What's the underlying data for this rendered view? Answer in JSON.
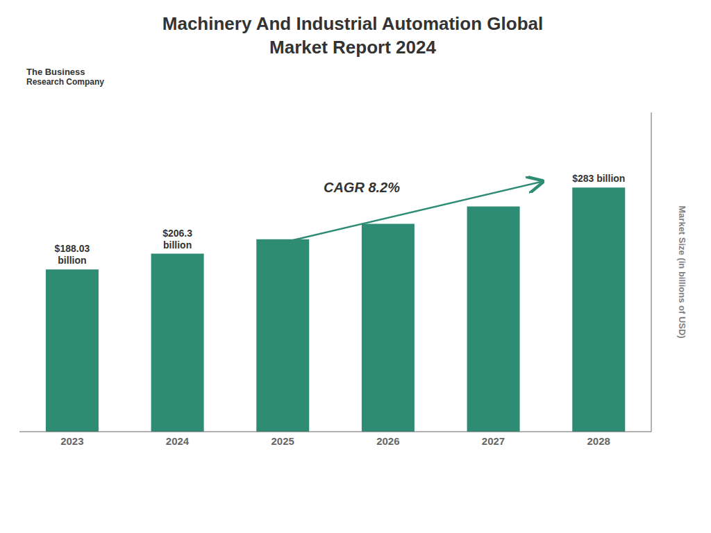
{
  "chart_data": {
    "type": "bar",
    "title": "Machinery And Industrial Automation Global\nMarket Report 2024",
    "ylabel": "Market Size (in billions of USD)",
    "categories": [
      "2023",
      "2024",
      "2025",
      "2026",
      "2027",
      "2028"
    ],
    "values": [
      188.03,
      206.3,
      223.0,
      241.0,
      261.0,
      283.0
    ],
    "value_labels": [
      "$188.03\nbillion",
      "$206.3\nbillion",
      null,
      null,
      null,
      "$283 billion"
    ],
    "color": "#2E8B74",
    "ylim": [
      0,
      370
    ],
    "tick_labels": "x",
    "grid": false,
    "annotations": [
      "CAGR 8.2%",
      "The Business",
      "Research Company"
    ]
  }
}
